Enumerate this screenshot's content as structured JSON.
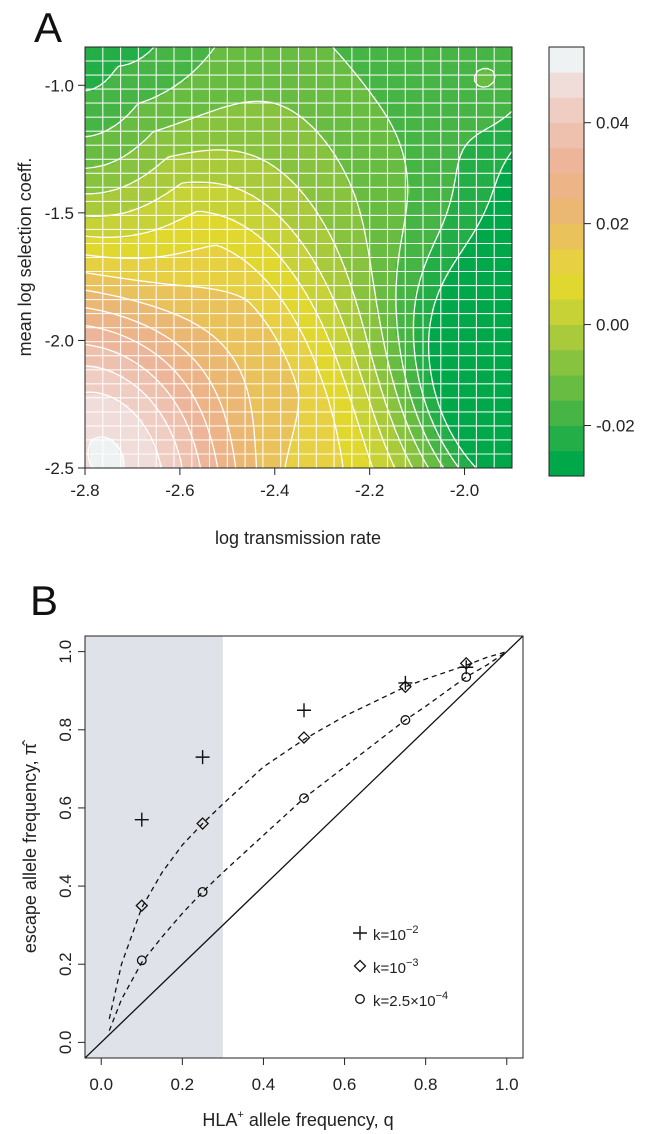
{
  "panels": {
    "a": {
      "letter": "A",
      "chart_data": {
        "type": "heatmap",
        "xlabel": "log transmission rate",
        "ylabel": "mean log selection coeff.",
        "xlim": [
          -2.8,
          -1.9
        ],
        "ylim": [
          -2.5,
          -0.85
        ],
        "x_ticks": [
          -2.8,
          -2.6,
          -2.4,
          -2.2,
          -2.0
        ],
        "x_tick_labels": [
          "-2.8",
          "-2.6",
          "-2.4",
          "-2.2",
          "-2.0"
        ],
        "y_ticks": [
          -2.5,
          -2.0,
          -1.5,
          -1.0
        ],
        "y_tick_labels": [
          "-2.5",
          "-2.0",
          "-1.5",
          "-1.0"
        ],
        "color_scale": {
          "levels": [
            -0.03,
            -0.025,
            -0.02,
            -0.015,
            -0.01,
            -0.005,
            0.0,
            0.005,
            0.01,
            0.015,
            0.02,
            0.025,
            0.03,
            0.035,
            0.04,
            0.045,
            0.05,
            0.055
          ],
          "colors": [
            "#00a84a",
            "#23ae47",
            "#46b545",
            "#68bc42",
            "#88c33f",
            "#a8ca3b",
            "#c6d236",
            "#e1d82f",
            "#e7d042",
            "#eac25b",
            "#ebb874",
            "#ecb487",
            "#edb599",
            "#eec0ae",
            "#efcdc2",
            "#f0dcd8",
            "#eff2f2"
          ],
          "tick_values": [
            -0.02,
            0.0,
            0.02,
            0.04
          ],
          "tick_labels": [
            "-0.02",
            "0.00",
            "0.02",
            "0.04"
          ]
        },
        "field_features": {
          "corner_max": {
            "x": -2.8,
            "y": -2.5,
            "value": 0.05
          },
          "ridge_value": 0.005,
          "right_min": {
            "x": -1.95,
            "y": -2.15,
            "value": -0.03
          },
          "topleft_min": {
            "x": -2.8,
            "y": -0.9,
            "value": -0.028
          },
          "topright_bump": {
            "x": -1.93,
            "y": -0.95,
            "value": 0.0
          }
        }
      }
    },
    "b": {
      "letter": "B",
      "chart_data": {
        "type": "scatter",
        "xlabel": "HLA+ allele frequency, q",
        "ylabel": "escape allele frequency, π̂",
        "xlim": [
          -0.04,
          1.04
        ],
        "ylim": [
          -0.04,
          1.04
        ],
        "x_ticks": [
          0.0,
          0.2,
          0.4,
          0.6,
          0.8,
          1.0
        ],
        "x_tick_labels": [
          "0.0",
          "0.2",
          "0.4",
          "0.6",
          "0.8",
          "1.0"
        ],
        "y_ticks": [
          0.0,
          0.2,
          0.4,
          0.6,
          0.8,
          1.0
        ],
        "y_tick_labels": [
          "0.0",
          "0.2",
          "0.4",
          "0.6",
          "0.8",
          "1.0"
        ],
        "shaded_region": {
          "x": [
            -0.04,
            0.3
          ],
          "color": "#dfe2e8"
        },
        "reference_line": {
          "from": [
            -0.04,
            -0.04
          ],
          "to": [
            1.04,
            1.04
          ]
        },
        "series": [
          {
            "legend_base": "k=10",
            "legend_exp": "−2",
            "marker": "plus",
            "x": [
              0.1,
              0.25,
              0.5,
              0.75,
              0.9
            ],
            "y": [
              0.57,
              0.73,
              0.85,
              0.92,
              0.96
            ]
          },
          {
            "legend_base": "k=10",
            "legend_exp": "−3",
            "marker": "diamond",
            "x": [
              0.1,
              0.25,
              0.5,
              0.75,
              0.9
            ],
            "y": [
              0.35,
              0.56,
              0.78,
              0.91,
              0.97
            ]
          },
          {
            "legend_base": "k=2.5×10",
            "legend_exp": "−4",
            "marker": "circle",
            "x": [
              0.1,
              0.25,
              0.5,
              0.75,
              0.9
            ],
            "y": [
              0.21,
              0.385,
              0.625,
              0.825,
              0.935
            ]
          }
        ],
        "fit_curves": [
          {
            "x": [
              0.02,
              0.05,
              0.1,
              0.15,
              0.2,
              0.25,
              0.3,
              0.4,
              0.5,
              0.6,
              0.7,
              0.75,
              0.8,
              0.9,
              0.95,
              1.0
            ],
            "y": [
              0.06,
              0.2,
              0.345,
              0.435,
              0.505,
              0.56,
              0.61,
              0.705,
              0.775,
              0.835,
              0.885,
              0.91,
              0.93,
              0.965,
              0.985,
              1.0
            ]
          },
          {
            "x": [
              0.02,
              0.05,
              0.1,
              0.15,
              0.2,
              0.25,
              0.3,
              0.4,
              0.5,
              0.6,
              0.7,
              0.75,
              0.8,
              0.9,
              0.95,
              1.0
            ],
            "y": [
              0.03,
              0.11,
              0.205,
              0.27,
              0.33,
              0.385,
              0.435,
              0.53,
              0.625,
              0.705,
              0.785,
              0.825,
              0.86,
              0.935,
              0.965,
              1.0
            ]
          }
        ],
        "legend_position": "bottom-right"
      }
    }
  }
}
